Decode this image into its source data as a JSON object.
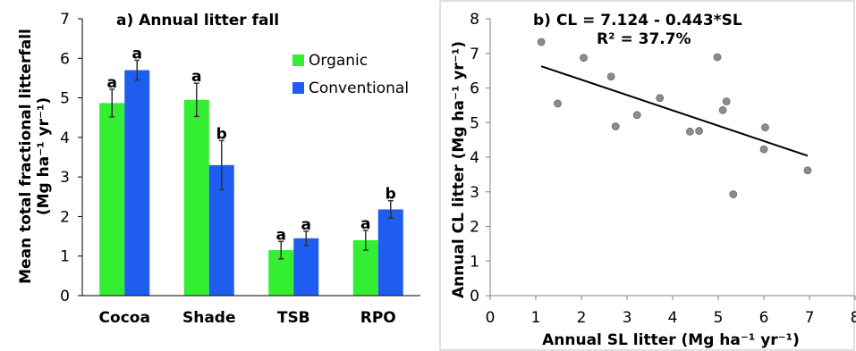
{
  "chart_data": [
    {
      "type": "bar",
      "title": "a) Annual litter fall",
      "ylabel_line1": "Mean total fractional litterfall",
      "ylabel_line2": "(Mg ha⁻¹ yr⁻¹)",
      "categories": [
        "Cocoa",
        "Shade",
        "TSB",
        "RPO"
      ],
      "ylim": [
        0,
        7
      ],
      "yticks": [
        "0",
        "1",
        "2",
        "3",
        "4",
        "5",
        "6",
        "7"
      ],
      "legend_position": "top-right",
      "series": [
        {
          "name": "Organic",
          "color": "#33ee33",
          "values": [
            4.87,
            4.95,
            1.15,
            1.4
          ],
          "errors": [
            0.35,
            0.42,
            0.22,
            0.25
          ],
          "letters": [
            "a",
            "a",
            "a",
            "a"
          ]
        },
        {
          "name": "Conventional",
          "color": "#1f5cf0",
          "values": [
            5.7,
            3.3,
            1.45,
            2.18
          ],
          "errors": [
            0.25,
            0.62,
            0.18,
            0.22
          ],
          "letters": [
            "a",
            "b",
            "a",
            "b"
          ]
        }
      ]
    },
    {
      "type": "scatter",
      "title": "b) CL = 7.124 - 0.443*SL",
      "subtitle": "R² = 37.7%",
      "xlabel": "Annual SL litter (Mg ha⁻¹ yr⁻¹)",
      "ylabel": "Annual CL litter (Mg ha⁻¹ yr⁻¹)",
      "xlim": [
        0,
        8
      ],
      "ylim": [
        0,
        8
      ],
      "xticks": [
        "0",
        "1",
        "2",
        "3",
        "4",
        "5",
        "6",
        "7",
        "8"
      ],
      "yticks": [
        "0",
        "1",
        "2",
        "3",
        "4",
        "5",
        "6",
        "7",
        "8"
      ],
      "point_color": "#8c8c8c",
      "points": [
        {
          "x": 1.12,
          "y": 7.33
        },
        {
          "x": 1.48,
          "y": 5.55
        },
        {
          "x": 2.05,
          "y": 6.87
        },
        {
          "x": 2.65,
          "y": 6.33
        },
        {
          "x": 2.75,
          "y": 4.89
        },
        {
          "x": 3.22,
          "y": 5.22
        },
        {
          "x": 3.72,
          "y": 5.71
        },
        {
          "x": 4.38,
          "y": 4.74
        },
        {
          "x": 4.58,
          "y": 4.76
        },
        {
          "x": 4.98,
          "y": 6.89
        },
        {
          "x": 5.1,
          "y": 5.36
        },
        {
          "x": 5.18,
          "y": 5.61
        },
        {
          "x": 5.33,
          "y": 2.93
        },
        {
          "x": 6.0,
          "y": 4.23
        },
        {
          "x": 6.03,
          "y": 4.86
        },
        {
          "x": 6.96,
          "y": 3.62
        }
      ],
      "fit_line": {
        "intercept": 7.124,
        "slope": -0.443,
        "x_start": 1.12,
        "x_end": 6.96
      }
    }
  ]
}
